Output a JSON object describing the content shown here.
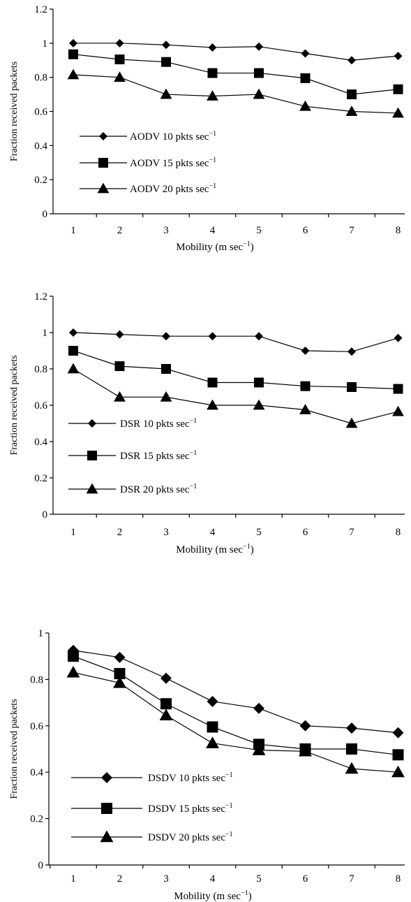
{
  "chart_data": [
    {
      "type": "line",
      "xlabel": "Mobility (m sec",
      "xlabel_sup": "−1",
      "xlabel_end": ")",
      "ylabel": "Fraction received packets",
      "categories": [
        "1",
        "2",
        "3",
        "4",
        "5",
        "6",
        "7",
        "8"
      ],
      "y_ticks": [
        "0",
        "0.2",
        "0.4",
        "0.6",
        "0.8",
        "1",
        "1.2"
      ],
      "ylim": [
        0,
        1.2
      ],
      "grid": false,
      "legend_position": "bottom-left",
      "series": [
        {
          "name": "AODV 10 pkts sec",
          "name_sup": "−1",
          "marker": "diamond",
          "values": [
            1.0,
            1.0,
            0.99,
            0.975,
            0.98,
            0.94,
            0.9,
            0.925
          ]
        },
        {
          "name": "AODV 15 pkts sec",
          "name_sup": "−1",
          "marker": "square",
          "values": [
            0.935,
            0.905,
            0.89,
            0.825,
            0.825,
            0.795,
            0.7,
            0.73
          ]
        },
        {
          "name": "AODV 20 pkts sec",
          "name_sup": "−1",
          "marker": "triangle",
          "values": [
            0.815,
            0.8,
            0.7,
            0.69,
            0.7,
            0.63,
            0.6,
            0.59
          ]
        }
      ]
    },
    {
      "type": "line",
      "xlabel": "Mobility (m sec",
      "xlabel_sup": "−1",
      "xlabel_end": ")",
      "ylabel": "Fraction received packets",
      "categories": [
        "1",
        "2",
        "3",
        "4",
        "5",
        "6",
        "7",
        "8"
      ],
      "y_ticks": [
        "0",
        "0.2",
        "0.4",
        "0.6",
        "0.8",
        "1",
        "1.2"
      ],
      "ylim": [
        0,
        1.2
      ],
      "grid": false,
      "legend_position": "bottom-left",
      "series": [
        {
          "name": "DSR 10 pkts sec",
          "name_sup": "−1",
          "marker": "diamond",
          "values": [
            1.0,
            0.99,
            0.98,
            0.98,
            0.98,
            0.9,
            0.895,
            0.97
          ]
        },
        {
          "name": "DSR 15 pkts sec",
          "name_sup": "−1",
          "marker": "square",
          "values": [
            0.9,
            0.815,
            0.8,
            0.725,
            0.725,
            0.705,
            0.7,
            0.69
          ]
        },
        {
          "name": "DSR 20 pkts sec",
          "name_sup": "−1",
          "marker": "triangle",
          "values": [
            0.8,
            0.645,
            0.645,
            0.6,
            0.6,
            0.575,
            0.5,
            0.565
          ]
        }
      ]
    },
    {
      "type": "line",
      "xlabel": "Mobility (m sec",
      "xlabel_sup": "−1",
      "xlabel_end": ")",
      "ylabel": "Fraction received packets",
      "categories": [
        "1",
        "2",
        "3",
        "4",
        "5",
        "6",
        "7",
        "8"
      ],
      "y_ticks": [
        "0",
        "0.2",
        "0.4",
        "0.6",
        "0.8",
        "1"
      ],
      "ylim": [
        0,
        1.0
      ],
      "grid": false,
      "legend_position": "bottom-left",
      "series": [
        {
          "name": "DSDV 10 pkts sec",
          "name_sup": "−1",
          "marker": "diamond",
          "values": [
            0.925,
            0.895,
            0.805,
            0.705,
            0.675,
            0.6,
            0.59,
            0.57
          ]
        },
        {
          "name": "DSDV 15 pkts sec",
          "name_sup": "−1",
          "marker": "square",
          "values": [
            0.9,
            0.825,
            0.695,
            0.595,
            0.52,
            0.5,
            0.5,
            0.475
          ]
        },
        {
          "name": "DSDV 20 pkts sec",
          "name_sup": "−1",
          "marker": "triangle",
          "values": [
            0.83,
            0.785,
            0.645,
            0.525,
            0.495,
            0.49,
            0.415,
            0.4
          ]
        }
      ]
    }
  ]
}
